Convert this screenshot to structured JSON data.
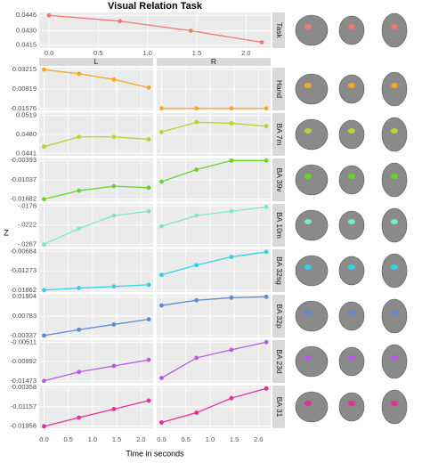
{
  "chart_data": {
    "type": "line",
    "title": "Visual Relation Task",
    "x_label": "Time in seconds",
    "y_label": "Z",
    "columns": [
      "L",
      "R"
    ],
    "x": [
      0,
      0.72,
      1.44,
      2.16
    ],
    "xlim": [
      -0.1,
      2.25
    ],
    "xticks": [
      {
        "value": 0,
        "label": "0.0"
      },
      {
        "value": 0.5,
        "label": "0.5"
      },
      {
        "value": 1,
        "label": "1.0"
      },
      {
        "value": 1.5,
        "label": "1.5"
      },
      {
        "value": 2,
        "label": "2.0"
      }
    ],
    "grid": true,
    "top": {
      "name": "Task",
      "color": "#f27a6b",
      "ylim": [
        0.0412,
        0.0449
      ],
      "yticks": [
        0.0446,
        {
          "value": 0.043,
          "label": "0.0430"
        },
        0.0415
      ],
      "values": [
        0.0446,
        0.044,
        0.043,
        0.0418
      ]
    },
    "rows": [
      {
        "name": "Hand",
        "color": "#f5a623",
        "ylim": [
          -0.0182,
          0.0346
        ],
        "yticks": [
          0.03215,
          0.00819,
          -0.01576
        ],
        "series": [
          {
            "values": [
              0.0322,
              0.027,
              0.02,
              0.01
            ]
          },
          {
            "values": [
              -0.0157,
              -0.0157,
              -0.0157,
              -0.0157
            ]
          }
        ]
      },
      {
        "name": "BA 7m",
        "color": "#b5d334",
        "ylim": [
          0.0436,
          0.0524
        ],
        "yticks": [
          0.0519,
          {
            "value": 0.048,
            "label": "0.0480"
          },
          0.0441
        ],
        "series": [
          {
            "values": [
              0.0455,
              0.0475,
              0.0475,
              0.047
            ]
          },
          {
            "values": [
              0.0485,
              0.0505,
              0.0503,
              0.0497
            ]
          }
        ]
      },
      {
        "name": "BA 39v",
        "color": "#6ad32a",
        "ylim": [
          -0.0175,
          -0.0033
        ],
        "yticks": [
          -0.00393,
          -0.01037,
          -0.01682
        ],
        "series": [
          {
            "values": [
              -0.0168,
              -0.014,
              -0.0125,
              -0.013
            ]
          },
          {
            "values": [
              -0.011,
              -0.007,
              -0.004,
              -0.004
            ]
          }
        ]
      },
      {
        "name": "BA 10m",
        "color": "#7de8c8",
        "ylim": [
          -0.0272,
          -0.0173
        ],
        "yticks": [
          {
            "value": -0.0178,
            "label": "-.0178"
          },
          {
            "value": -0.0222,
            "label": "-.0222"
          },
          {
            "value": -0.0267,
            "label": "-.0267"
          }
        ],
        "series": [
          {
            "values": [
              -0.0267,
              -0.023,
              -0.02,
              -0.019
            ]
          },
          {
            "values": [
              -0.0225,
              -0.02,
              -0.019,
              -0.018
            ]
          }
        ]
      },
      {
        "name": "BA 32sg",
        "color": "#2ed3e6",
        "ylim": [
          -0.0192,
          -0.0062
        ],
        "yticks": [
          -0.00684,
          -0.01273,
          -0.01862
        ],
        "series": [
          {
            "values": [
              -0.0186,
              -0.018,
              -0.0175,
              -0.017
            ]
          },
          {
            "values": [
              -0.014,
              -0.011,
              -0.0085,
              -0.007
            ]
          }
        ]
      },
      {
        "name": "BA 32p",
        "color": "#5b8ad6",
        "ylim": [
          -0.0045,
          0.0202
        ],
        "yticks": [
          0.01904,
          0.00783,
          -0.00337
        ],
        "series": [
          {
            "values": [
              -0.0034,
              0,
              0.003,
              0.006
            ]
          },
          {
            "values": [
              0.014,
              0.017,
              0.0185,
              0.019
            ]
          }
        ]
      },
      {
        "name": "BA 23d",
        "color": "#b55ae8",
        "ylim": [
          -0.0152,
          -0.0046
        ],
        "yticks": [
          -0.00511,
          -0.00992,
          -0.01473
        ],
        "series": [
          {
            "values": [
              -0.0147,
              -0.0125,
              -0.011,
              -0.0095
            ]
          },
          {
            "values": [
              -0.014,
              -0.009,
              -0.007,
              -0.0051
            ]
          }
        ]
      },
      {
        "name": "BA 31",
        "color": "#e62e9a",
        "ylim": [
          -0.0204,
          -0.0028
        ],
        "yticks": [
          -0.00358,
          -0.01157,
          -0.01956
        ],
        "series": [
          {
            "values": [
              -0.0196,
              -0.016,
              -0.0125,
              -0.009
            ]
          },
          {
            "values": [
              -0.018,
              -0.014,
              -0.008,
              -0.004
            ]
          }
        ]
      }
    ]
  }
}
